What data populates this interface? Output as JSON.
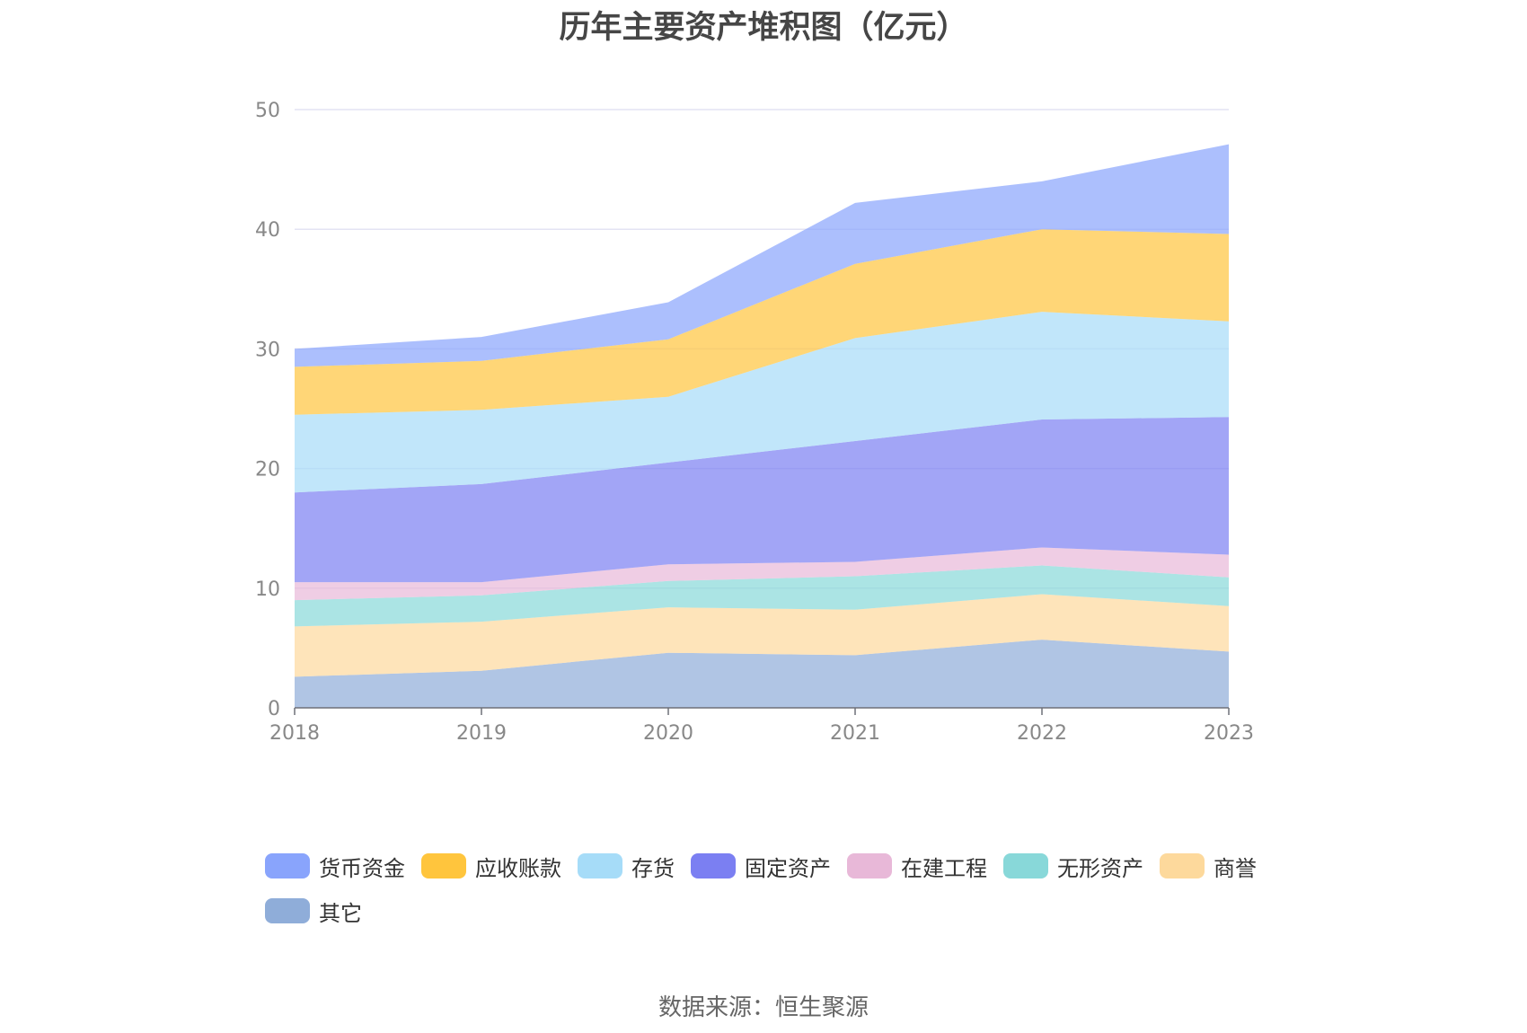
{
  "chart_data": {
    "type": "area",
    "stacked": true,
    "title": "历年主要资产堆积图（亿元）",
    "x": [
      "2018",
      "2019",
      "2020",
      "2021",
      "2022",
      "2023"
    ],
    "ylim": [
      0,
      50
    ],
    "yticks": [
      0,
      10,
      20,
      30,
      40,
      50
    ],
    "xlabel": "",
    "ylabel": "",
    "grid": true,
    "legend_position": "bottom",
    "series": [
      {
        "name": "其它",
        "color": "#8fadd9",
        "values": [
          2.6,
          3.1,
          4.6,
          4.4,
          5.7,
          4.7
        ]
      },
      {
        "name": "商誉",
        "color": "#fdd99c",
        "values": [
          4.2,
          4.1,
          3.8,
          3.8,
          3.8,
          3.8
        ]
      },
      {
        "name": "无形资产",
        "color": "#88d8d9",
        "values": [
          2.2,
          2.2,
          2.2,
          2.8,
          2.4,
          2.4
        ]
      },
      {
        "name": "在建工程",
        "color": "#e8b8d8",
        "values": [
          1.5,
          1.1,
          1.4,
          1.2,
          1.5,
          1.9
        ]
      },
      {
        "name": "固定资产",
        "color": "#7b7ff2",
        "values": [
          7.5,
          8.2,
          8.5,
          10.1,
          10.7,
          11.5
        ]
      },
      {
        "name": "存货",
        "color": "#a6dcf8",
        "values": [
          6.5,
          6.2,
          5.5,
          8.6,
          9.0,
          8.0
        ]
      },
      {
        "name": "应收账款",
        "color": "#ffc53d",
        "values": [
          4.0,
          4.1,
          4.8,
          6.2,
          6.9,
          7.3
        ]
      },
      {
        "name": "货币资金",
        "color": "#89a4fc",
        "values": [
          1.5,
          2.0,
          3.1,
          5.1,
          4.0,
          7.5
        ]
      }
    ]
  },
  "legend_order": [
    "货币资金",
    "应收账款",
    "存货",
    "固定资产",
    "在建工程",
    "无形资产",
    "商誉",
    "其它"
  ],
  "source": "数据来源：恒生聚源"
}
